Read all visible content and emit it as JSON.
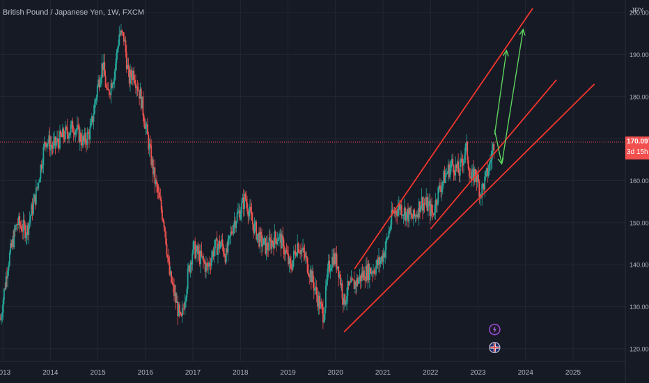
{
  "chart_data": {
    "type": "candlestick",
    "title": "British Pound / Japanese Yen, 1W, FXCM",
    "unit": "JPY",
    "ylim": [
      117,
      203
    ],
    "y_ticks": [
      120,
      130,
      140,
      150,
      160,
      170,
      180,
      190,
      200
    ],
    "y_tick_labels": [
      "120.000",
      "130.000",
      "140.000",
      "150.000",
      "160.000",
      "170.000",
      "180.000",
      "190.000",
      "200.000"
    ],
    "x_tick_labels": [
      "2013",
      "2014",
      "2015",
      "2016",
      "2017",
      "2018",
      "2019",
      "2020",
      "2021",
      "2022",
      "2023",
      "2024",
      "2025"
    ],
    "x_tick_years": [
      2013,
      2014,
      2015,
      2016,
      2017,
      2018,
      2019,
      2020,
      2021,
      2022,
      2023,
      2024,
      2025
    ],
    "xlim": [
      2012.94,
      2026.1
    ],
    "last_price": "170.097",
    "countdown": "3d 15h",
    "up_color": "#26a69a",
    "down_color": "#ef5350",
    "price_keypoints": [
      [
        2012.95,
        127
      ],
      [
        2013.1,
        140
      ],
      [
        2013.3,
        150
      ],
      [
        2013.5,
        148
      ],
      [
        2013.7,
        157
      ],
      [
        2013.9,
        170
      ],
      [
        2014.05,
        168
      ],
      [
        2014.3,
        171
      ],
      [
        2014.5,
        173
      ],
      [
        2014.7,
        169
      ],
      [
        2014.85,
        172
      ],
      [
        2015.0,
        183
      ],
      [
        2015.1,
        188
      ],
      [
        2015.2,
        180
      ],
      [
        2015.35,
        186
      ],
      [
        2015.45,
        195
      ],
      [
        2015.55,
        194
      ],
      [
        2015.65,
        184
      ],
      [
        2015.75,
        186
      ],
      [
        2015.9,
        180
      ],
      [
        2016.05,
        170
      ],
      [
        2016.2,
        160
      ],
      [
        2016.4,
        150
      ],
      [
        2016.5,
        138
      ],
      [
        2016.65,
        131
      ],
      [
        2016.75,
        126
      ],
      [
        2016.9,
        138
      ],
      [
        2017.0,
        144
      ],
      [
        2017.2,
        141
      ],
      [
        2017.3,
        139
      ],
      [
        2017.45,
        144
      ],
      [
        2017.6,
        145
      ],
      [
        2017.7,
        142
      ],
      [
        2017.85,
        150
      ],
      [
        2018.0,
        153
      ],
      [
        2018.1,
        156
      ],
      [
        2018.25,
        150
      ],
      [
        2018.4,
        146
      ],
      [
        2018.55,
        144
      ],
      [
        2018.7,
        146
      ],
      [
        2018.8,
        147
      ],
      [
        2018.95,
        143
      ],
      [
        2019.05,
        139
      ],
      [
        2019.2,
        145
      ],
      [
        2019.35,
        142
      ],
      [
        2019.5,
        137
      ],
      [
        2019.65,
        131
      ],
      [
        2019.75,
        128
      ],
      [
        2019.85,
        139
      ],
      [
        2019.95,
        142
      ],
      [
        2020.05,
        140
      ],
      [
        2020.18,
        131
      ],
      [
        2020.25,
        134
      ],
      [
        2020.45,
        136
      ],
      [
        2020.6,
        138
      ],
      [
        2020.8,
        139
      ],
      [
        2020.95,
        141
      ],
      [
        2021.05,
        144
      ],
      [
        2021.2,
        152
      ],
      [
        2021.35,
        154
      ],
      [
        2021.5,
        152
      ],
      [
        2021.65,
        151
      ],
      [
        2021.8,
        155
      ],
      [
        2021.95,
        154
      ],
      [
        2022.05,
        152
      ],
      [
        2022.15,
        157
      ],
      [
        2022.3,
        161
      ],
      [
        2022.45,
        164
      ],
      [
        2022.6,
        162
      ],
      [
        2022.75,
        168
      ],
      [
        2022.85,
        160
      ],
      [
        2022.95,
        162
      ],
      [
        2023.05,
        157
      ],
      [
        2023.15,
        160
      ],
      [
        2023.25,
        164
      ],
      [
        2023.35,
        170
      ]
    ],
    "trendlines": [
      {
        "name": "channel-upper",
        "from": [
          2020.4,
          139
        ],
        "to": [
          2024.15,
          201
        ]
      },
      {
        "name": "channel-middle",
        "from": [
          2022.0,
          148.5
        ],
        "to": [
          2024.65,
          184
        ]
      },
      {
        "name": "channel-lower",
        "from": [
          2020.18,
          124
        ],
        "to": [
          2025.45,
          183
        ]
      }
    ],
    "arrows": [
      {
        "name": "forecast-arrow-short",
        "from": [
          2023.35,
          171
        ],
        "to": [
          2023.6,
          191
        ]
      },
      {
        "name": "forecast-arrow-long",
        "from": [
          2023.5,
          164
        ],
        "to": [
          2023.95,
          196
        ]
      }
    ],
    "down_arrow": {
      "name": "pullback-arrow",
      "from": [
        2023.35,
        172
      ],
      "to": [
        2023.5,
        164
      ]
    },
    "markers": [
      {
        "name": "lightning-event-icon",
        "x": 2023.35,
        "y": 124.6
      },
      {
        "name": "uk-flag-event-icon",
        "x": 2023.35,
        "y": 120.3
      }
    ]
  }
}
